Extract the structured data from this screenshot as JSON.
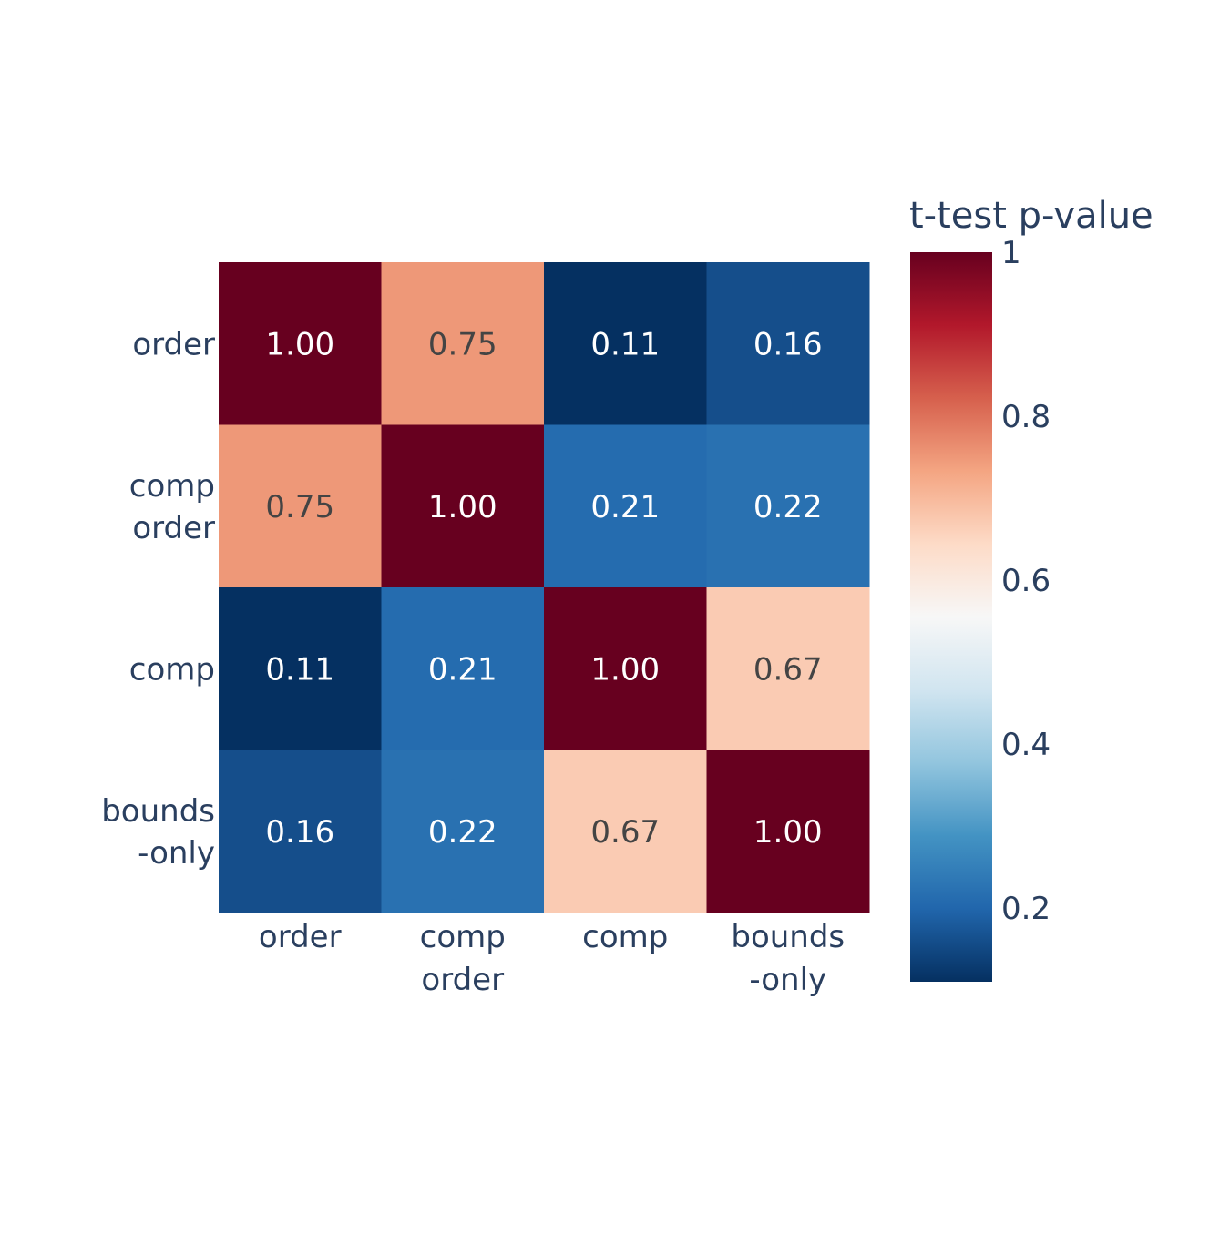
{
  "chart_data": {
    "type": "heatmap",
    "x_categories": [
      [
        "order"
      ],
      [
        "comp",
        "order"
      ],
      [
        "comp"
      ],
      [
        "bounds",
        "-only"
      ]
    ],
    "y_categories": [
      [
        "order"
      ],
      [
        "comp",
        "order"
      ],
      [
        "comp"
      ],
      [
        "bounds",
        "-only"
      ]
    ],
    "z": [
      [
        1.0,
        0.75,
        0.11,
        0.16
      ],
      [
        0.75,
        1.0,
        0.21,
        0.22
      ],
      [
        0.11,
        0.21,
        1.0,
        0.67
      ],
      [
        0.16,
        0.22,
        0.67,
        1.0
      ]
    ],
    "cell_labels": [
      [
        "1.00",
        "0.75",
        "0.11",
        "0.16"
      ],
      [
        "0.75",
        "1.00",
        "0.21",
        "0.22"
      ],
      [
        "0.11",
        "0.21",
        "1.00",
        "0.67"
      ],
      [
        "0.16",
        "0.22",
        "0.67",
        "1.00"
      ]
    ],
    "colorscale": "RdBu",
    "colorscale_stops": [
      "#053061",
      "#2166ac",
      "#4393c3",
      "#92c5de",
      "#d1e5f0",
      "#f7f7f7",
      "#fddbc7",
      "#f4a582",
      "#d6604d",
      "#b2182b",
      "#67001f"
    ],
    "colorbar": {
      "title": "t-test p-value",
      "range": [
        0.11,
        1.0
      ],
      "ticks": [
        1,
        0.8,
        0.6,
        0.4,
        0.2
      ],
      "tick_labels": [
        "1",
        "0.8",
        "0.6",
        "0.4",
        "0.2"
      ]
    },
    "text_colors": {
      "dark": "#444444",
      "light": "#ffffff"
    }
  }
}
